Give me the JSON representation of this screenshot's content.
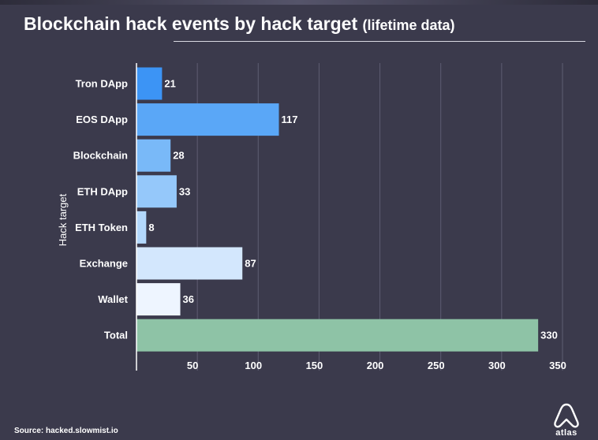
{
  "chart_data": {
    "type": "bar",
    "orientation": "horizontal",
    "title": "Blockchain hack events by hack target",
    "subtitle": "(lifetime data)",
    "ylabel": "Hack target",
    "xlabel": "",
    "categories": [
      "Tron DApp",
      "EOS DApp",
      "Blockchain",
      "ETH DApp",
      "ETH Token",
      "Exchange",
      "Wallet",
      "Total"
    ],
    "values": [
      21,
      117,
      28,
      33,
      8,
      87,
      36,
      330
    ],
    "data_labels": [
      "21",
      "117",
      "28",
      "33",
      "8",
      "87",
      "36",
      "330"
    ],
    "bar_colors": [
      "#3c94f5",
      "#5aa7f7",
      "#79b9f8",
      "#95c8fa",
      "#b3d8fc",
      "#d3e7fd",
      "#eef5ff",
      "#8ec3a6"
    ],
    "xlim": [
      0,
      350
    ],
    "xticks": [
      50,
      100,
      150,
      200,
      250,
      300,
      350
    ],
    "xtick_labels": [
      "50",
      "100",
      "150",
      "200",
      "250",
      "300",
      "350"
    ],
    "grid": "vertical"
  },
  "source": "Source: hacked.slowmist.io",
  "logo": {
    "text": "atlas",
    "icon": "atlas-a-icon"
  }
}
